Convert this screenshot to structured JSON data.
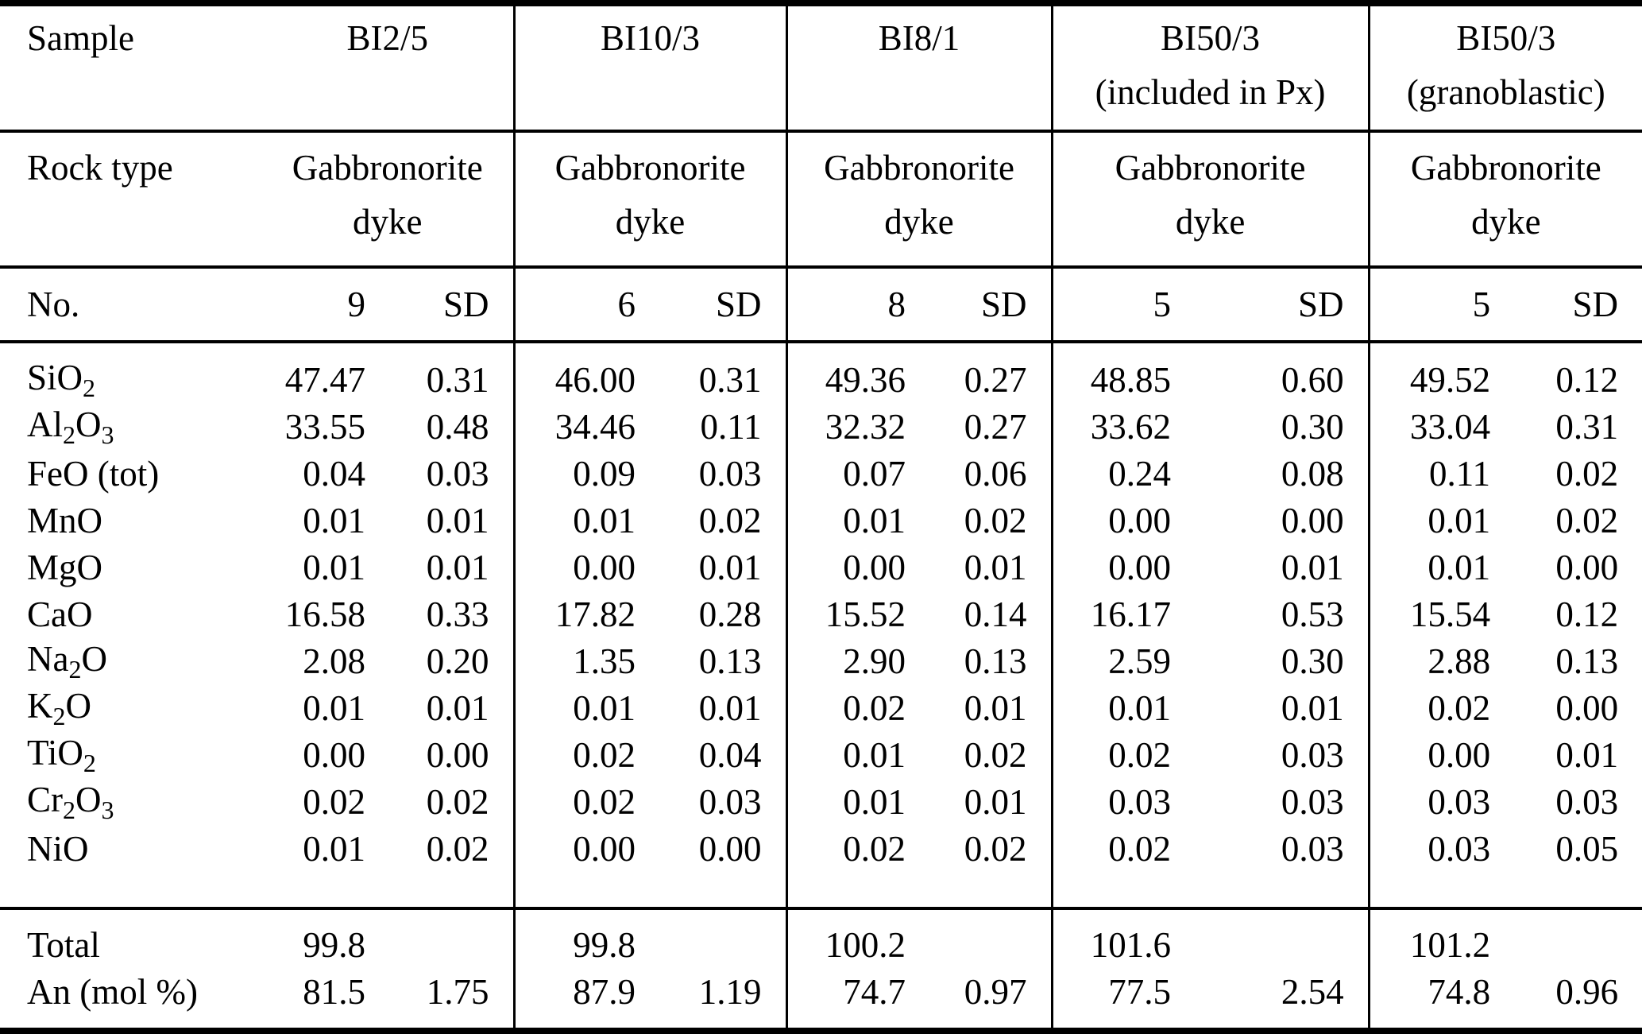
{
  "colors": {
    "text": "#000000",
    "background": "#ffffff",
    "rule": "#000000"
  },
  "table": {
    "corner_labels": {
      "sample": "Sample",
      "rock_type": "Rock type",
      "no": "No.",
      "total": "Total",
      "an": "An (mol %)"
    },
    "sd_label": "SD",
    "groups": [
      {
        "sample_line1": "BI2/5",
        "sample_line2": "",
        "rock_line1": "Gabbronorite",
        "rock_line2": "dyke",
        "count": "9",
        "total": "99.8",
        "an": "81.5",
        "an_sd": "1.75"
      },
      {
        "sample_line1": "BI10/3",
        "sample_line2": "",
        "rock_line1": "Gabbronorite",
        "rock_line2": "dyke",
        "count": "6",
        "total": "99.8",
        "an": "87.9",
        "an_sd": "1.19"
      },
      {
        "sample_line1": "BI8/1",
        "sample_line2": "",
        "rock_line1": "Gabbronorite",
        "rock_line2": "dyke",
        "count": "8",
        "total": "100.2",
        "an": "74.7",
        "an_sd": "0.97"
      },
      {
        "sample_line1": "BI50/3",
        "sample_line2": "(included in Px)",
        "rock_line1": "Gabbronorite",
        "rock_line2": "dyke",
        "count": "5",
        "total": "101.6",
        "an": "77.5",
        "an_sd": "2.54"
      },
      {
        "sample_line1": "BI50/3",
        "sample_line2": "(granoblastic)",
        "rock_line1": "Gabbronorite",
        "rock_line2": "dyke",
        "count": "5",
        "total": "101.2",
        "an": "74.8",
        "an_sd": "0.96"
      }
    ],
    "oxides": [
      {
        "formula": [
          {
            "t": "SiO"
          },
          {
            "t": "2",
            "sub": true
          }
        ],
        "values": [
          "47.47",
          "0.31",
          "46.00",
          "0.31",
          "49.36",
          "0.27",
          "48.85",
          "0.60",
          "49.52",
          "0.12"
        ]
      },
      {
        "formula": [
          {
            "t": "Al"
          },
          {
            "t": "2",
            "sub": true
          },
          {
            "t": "O"
          },
          {
            "t": "3",
            "sub": true
          }
        ],
        "values": [
          "33.55",
          "0.48",
          "34.46",
          "0.11",
          "32.32",
          "0.27",
          "33.62",
          "0.30",
          "33.04",
          "0.31"
        ]
      },
      {
        "formula": [
          {
            "t": "FeO (tot)"
          }
        ],
        "values": [
          "0.04",
          "0.03",
          "0.09",
          "0.03",
          "0.07",
          "0.06",
          "0.24",
          "0.08",
          "0.11",
          "0.02"
        ]
      },
      {
        "formula": [
          {
            "t": "MnO"
          }
        ],
        "values": [
          "0.01",
          "0.01",
          "0.01",
          "0.02",
          "0.01",
          "0.02",
          "0.00",
          "0.00",
          "0.01",
          "0.02"
        ]
      },
      {
        "formula": [
          {
            "t": "MgO"
          }
        ],
        "values": [
          "0.01",
          "0.01",
          "0.00",
          "0.01",
          "0.00",
          "0.01",
          "0.00",
          "0.01",
          "0.01",
          "0.00"
        ]
      },
      {
        "formula": [
          {
            "t": "CaO"
          }
        ],
        "values": [
          "16.58",
          "0.33",
          "17.82",
          "0.28",
          "15.52",
          "0.14",
          "16.17",
          "0.53",
          "15.54",
          "0.12"
        ]
      },
      {
        "formula": [
          {
            "t": "Na"
          },
          {
            "t": "2",
            "sub": true
          },
          {
            "t": "O"
          }
        ],
        "values": [
          "2.08",
          "0.20",
          "1.35",
          "0.13",
          "2.90",
          "0.13",
          "2.59",
          "0.30",
          "2.88",
          "0.13"
        ]
      },
      {
        "formula": [
          {
            "t": "K"
          },
          {
            "t": "2",
            "sub": true
          },
          {
            "t": "O"
          }
        ],
        "values": [
          "0.01",
          "0.01",
          "0.01",
          "0.01",
          "0.02",
          "0.01",
          "0.01",
          "0.01",
          "0.02",
          "0.00"
        ]
      },
      {
        "formula": [
          {
            "t": "TiO"
          },
          {
            "t": "2",
            "sub": true
          }
        ],
        "values": [
          "0.00",
          "0.00",
          "0.02",
          "0.04",
          "0.01",
          "0.02",
          "0.02",
          "0.03",
          "0.00",
          "0.01"
        ]
      },
      {
        "formula": [
          {
            "t": "Cr"
          },
          {
            "t": "2",
            "sub": true
          },
          {
            "t": "O"
          },
          {
            "t": "3",
            "sub": true
          }
        ],
        "values": [
          "0.02",
          "0.02",
          "0.02",
          "0.03",
          "0.01",
          "0.01",
          "0.03",
          "0.03",
          "0.03",
          "0.03"
        ]
      },
      {
        "formula": [
          {
            "t": "NiO"
          }
        ],
        "values": [
          "0.01",
          "0.02",
          "0.00",
          "0.00",
          "0.02",
          "0.02",
          "0.02",
          "0.03",
          "0.03",
          "0.05"
        ]
      }
    ]
  }
}
